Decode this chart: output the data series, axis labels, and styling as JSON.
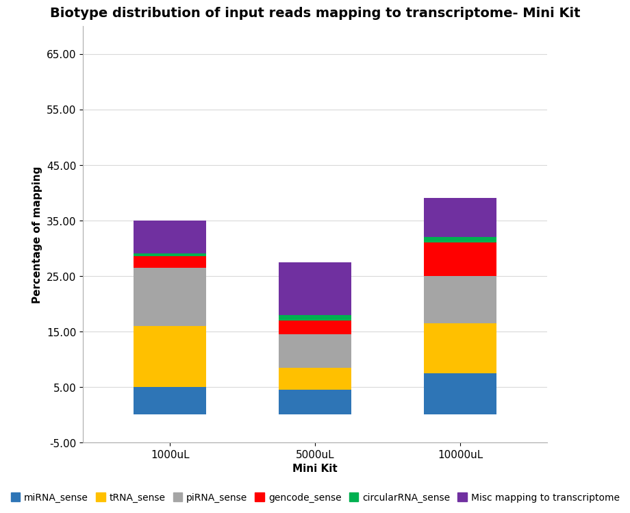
{
  "title": "Biotype distribution of input reads mapping to transcriptome- Mini Kit",
  "xlabel": "Mini Kit",
  "ylabel": "Percentage of mapping",
  "categories": [
    "1000uL",
    "5000uL",
    "10000uL"
  ],
  "series": {
    "miRNA_sense": [
      5.0,
      4.5,
      7.5
    ],
    "tRNA_sense": [
      11.0,
      4.0,
      9.0
    ],
    "piRNA_sense": [
      10.5,
      6.0,
      8.5
    ],
    "gencode_sense": [
      2.0,
      2.5,
      6.0
    ],
    "circularRNA_sense": [
      0.5,
      1.0,
      1.0
    ],
    "Misc mapping to transcriptome": [
      6.0,
      9.5,
      7.0
    ]
  },
  "colors": {
    "miRNA_sense": "#2E75B6",
    "tRNA_sense": "#FFC000",
    "piRNA_sense": "#A5A5A5",
    "gencode_sense": "#FF0000",
    "circularRNA_sense": "#00B050",
    "Misc mapping to transcriptome": "#7030A0"
  },
  "ylim": [
    -5.0,
    70.0
  ],
  "yticks": [
    -5.0,
    5.0,
    15.0,
    25.0,
    35.0,
    45.0,
    55.0,
    65.0
  ],
  "ytick_labels": [
    "-5.00",
    "5.00",
    "15.00",
    "25.00",
    "35.00",
    "45.00",
    "55.00",
    "65.00"
  ],
  "bar_width": 0.5,
  "background_color": "#FFFFFF",
  "grid_color": "#D9D9D9",
  "title_fontsize": 14,
  "axis_label_fontsize": 11,
  "tick_fontsize": 11,
  "legend_fontsize": 10
}
